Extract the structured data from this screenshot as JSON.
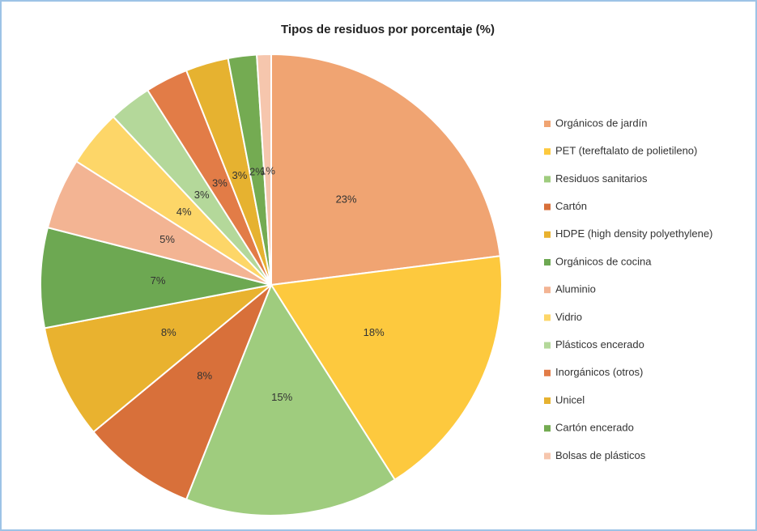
{
  "chart_data": {
    "type": "pie",
    "title": "Tipos de residuos por porcentaje (%)",
    "categories": [
      "Orgánicos de jardín",
      "PET (tereftalato de polietileno)",
      "Residuos sanitarios",
      "Cartón",
      "HDPE  (high density polyethylene)",
      "Orgánicos de cocina",
      "Aluminio",
      "Vidrio",
      "Plásticos encerado",
      "Inorgánicos (otros)",
      "Unicel",
      "Cartón encerado",
      "Bolsas de plásticos"
    ],
    "values": [
      23,
      18,
      15,
      8,
      8,
      7,
      5,
      4,
      3,
      3,
      3,
      2,
      1
    ],
    "value_labels": [
      "23%",
      "18%",
      "15%",
      "8%",
      "8%",
      "7%",
      "5%",
      "4%",
      "3%",
      "3%",
      "3%",
      "2%",
      "1%"
    ],
    "colors": [
      "#f0a472",
      "#fdc93e",
      "#9fcc7e",
      "#d8703a",
      "#e9b22f",
      "#6da852",
      "#f3b493",
      "#fdd668",
      "#b4d89a",
      "#e27c47",
      "#e6b230",
      "#74ab52",
      "#f6c6ad"
    ],
    "legend": "right"
  }
}
